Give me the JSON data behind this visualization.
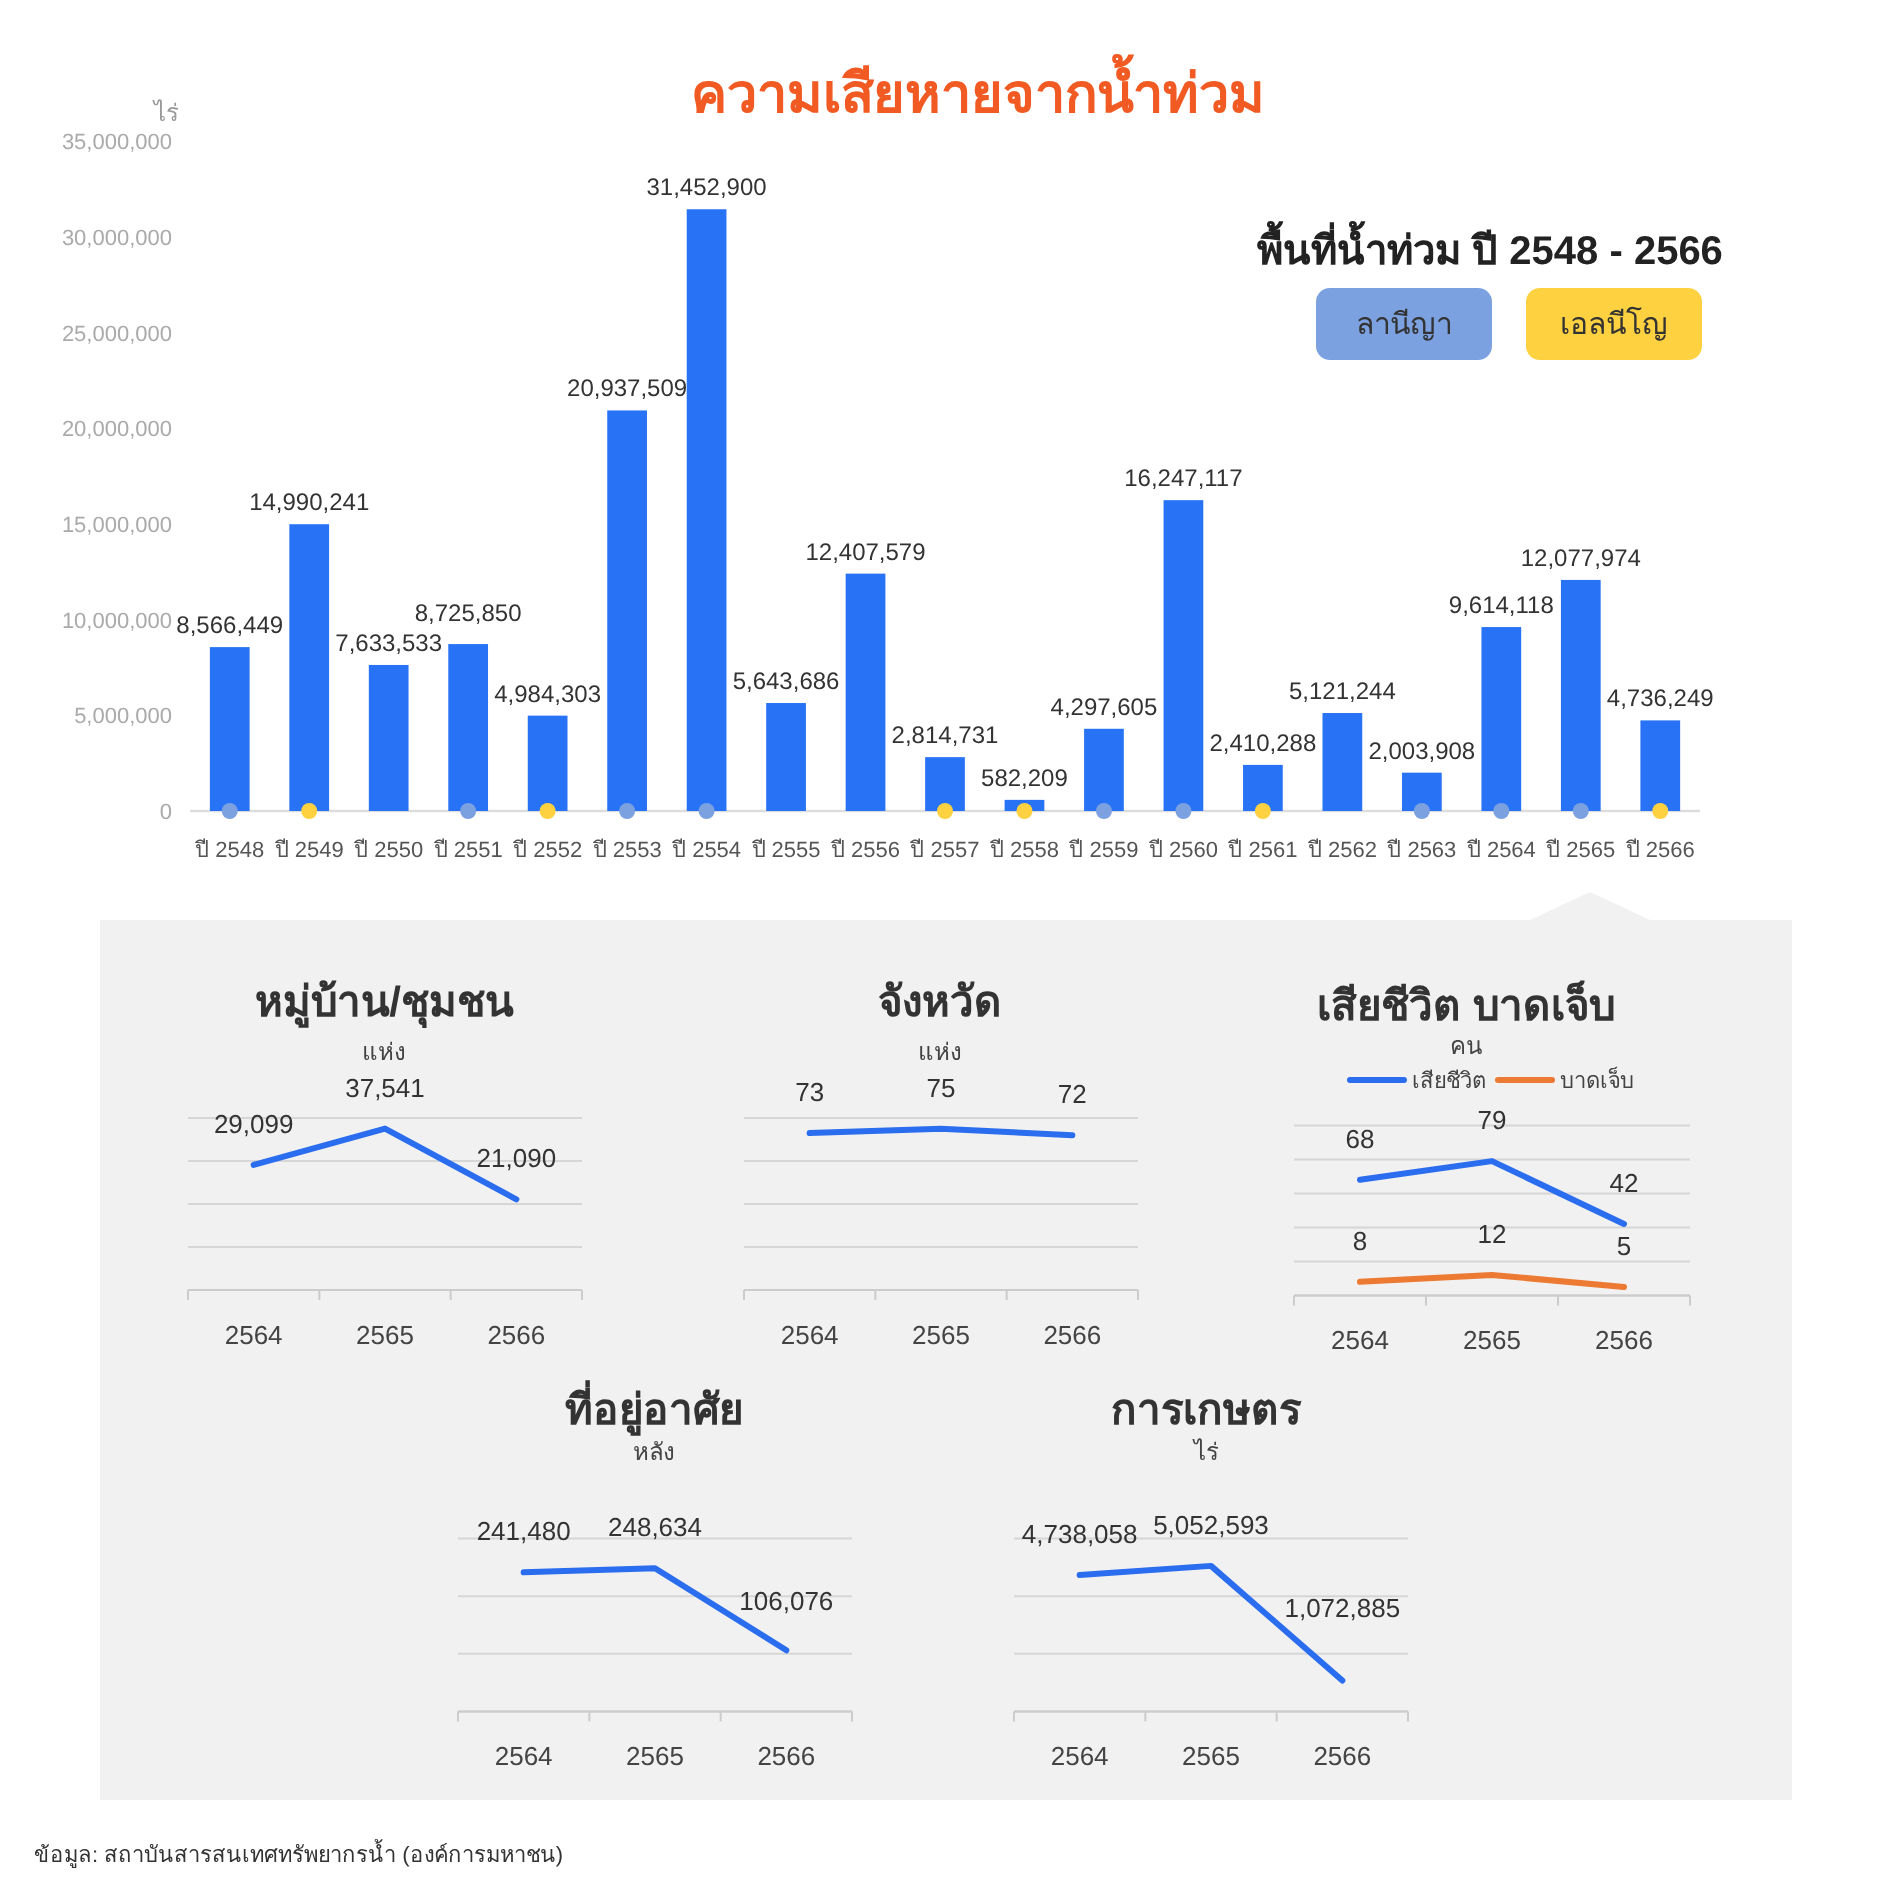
{
  "chart_data": [
    {
      "type": "bar",
      "title": "ความเสียหายจากน้ำท่วม",
      "subtitle": "พื้นที่น้ำท่วม ปี 2548 - 2566",
      "ylabel": "ไร่",
      "categories": [
        "ปี 2548",
        "ปี 2549",
        "ปี 2550",
        "ปี 2551",
        "ปี 2552",
        "ปี 2553",
        "ปี 2554",
        "ปี 2555",
        "ปี 2556",
        "ปี 2557",
        "ปี 2558",
        "ปี 2559",
        "ปี 2560",
        "ปี 2561",
        "ปี 2562",
        "ปี 2563",
        "ปี 2564",
        "ปี 2565",
        "ปี 2566"
      ],
      "series": [
        {
          "type": "bar",
          "color": "#2873f5",
          "values": [
            8566449,
            14990241,
            7633533,
            8725850,
            4984303,
            20937509,
            31452900,
            5643686,
            12407579,
            2814731,
            582209,
            4297605,
            16247117,
            2410288,
            5121244,
            2003908,
            9614118,
            12077974,
            4736249
          ],
          "value_labels": [
            "8,566,449",
            "14,990,241",
            "7,633,533",
            "8,725,850",
            "4,984,303",
            "20,937,509",
            "31,452,900",
            "5,643,686",
            "12,407,579",
            "2,814,731",
            "582,209",
            "4,297,605",
            "16,247,117",
            "2,410,288",
            "5,121,244",
            "2,003,908",
            "9,614,118",
            "12,077,974",
            "4,736,249"
          ]
        },
        {
          "type": "scatter",
          "name": "ลานีญา",
          "color": "#7ca1e1",
          "marker": "circle",
          "x": [
            "ปี 2548",
            "ปี 2551",
            "ปี 2553",
            "ปี 2554",
            "ปี 2559",
            "ปี 2560",
            "ปี 2563",
            "ปี 2564",
            "ปี 2565"
          ],
          "values": [
            0,
            0,
            0,
            0,
            0,
            0,
            0,
            0,
            0
          ]
        },
        {
          "type": "scatter",
          "name": "เอลนีโญ",
          "color": "#fdd13f",
          "marker": "circle",
          "x": [
            "ปี 2549",
            "ปี 2552",
            "ปี 2557",
            "ปี 2558",
            "ปี 2561",
            "ปี 2566"
          ],
          "values": [
            0,
            0,
            0,
            0,
            0,
            0
          ]
        }
      ],
      "ylim": [
        0,
        35000000
      ],
      "yticks": [
        {
          "value": 0,
          "label": "0"
        },
        {
          "value": 5000000,
          "label": "5,000,000"
        },
        {
          "value": 10000000,
          "label": "10,000,000"
        },
        {
          "value": 15000000,
          "label": "15,000,000"
        },
        {
          "value": 20000000,
          "label": "20,000,000"
        },
        {
          "value": 25000000,
          "label": "25,000,000"
        },
        {
          "value": 30000000,
          "label": "30,000,000"
        },
        {
          "value": 35000000,
          "label": "35,000,000"
        }
      ],
      "legend": "top right",
      "annotations": [
        "ข้อมูล: สถาบันสารสนเทศทรัพยากรน้ำ (องค์การมหาชน)"
      ]
    },
    {
      "type": "line",
      "title": "หมู่บ้าน/ชุมชน",
      "subtitle": "แห่ง",
      "categories": [
        "2564",
        "2565",
        "2566"
      ],
      "series": [
        {
          "color": "#2a6def",
          "values": [
            29099,
            37541,
            21090
          ],
          "value_labels": [
            "29,099",
            "37,541",
            "21,090"
          ]
        }
      ],
      "ylim": [
        0,
        40000
      ],
      "yticks": [
        {
          "value": 0,
          "label": null
        },
        {
          "value": 10000,
          "label": null
        },
        {
          "value": 20000,
          "label": null
        },
        {
          "value": 30000,
          "label": null
        },
        {
          "value": 40000,
          "label": null
        }
      ],
      "grid": "y",
      "tick_labels": "x"
    },
    {
      "type": "line",
      "title": "จังหวัด",
      "subtitle": "แห่ง",
      "categories": [
        "2564",
        "2565",
        "2566"
      ],
      "series": [
        {
          "color": "#2a6def",
          "values": [
            73,
            75,
            72
          ],
          "value_labels": [
            "73",
            "75",
            "72"
          ]
        }
      ],
      "ylim": [
        0,
        80
      ],
      "yticks": [
        {
          "value": 0,
          "label": null
        },
        {
          "value": 20,
          "label": null
        },
        {
          "value": 40,
          "label": null
        },
        {
          "value": 60,
          "label": null
        },
        {
          "value": 80,
          "label": null
        }
      ],
      "grid": "y",
      "tick_labels": "x"
    },
    {
      "type": "line",
      "title": "เสียชีวิต บาดเจ็บ",
      "subtitle": "คน",
      "categories": [
        "2564",
        "2565",
        "2566"
      ],
      "series": [
        {
          "name": "เสียชีวิต",
          "color": "#2a6def",
          "values": [
            68,
            79,
            42
          ],
          "value_labels": [
            "68",
            "79",
            "42"
          ]
        },
        {
          "name": "บาดเจ็บ",
          "color": "#ec7a32",
          "values": [
            8,
            12,
            5
          ],
          "value_labels": [
            "8",
            "12",
            "5"
          ]
        }
      ],
      "ylim": [
        0,
        100
      ],
      "yticks": [
        {
          "value": 0,
          "label": null
        },
        {
          "value": 20,
          "label": null
        },
        {
          "value": 40,
          "label": null
        },
        {
          "value": 60,
          "label": null
        },
        {
          "value": 80,
          "label": null
        },
        {
          "value": 100,
          "label": null
        }
      ],
      "grid": "y",
      "tick_labels": "x",
      "legend": "top"
    },
    {
      "type": "line",
      "title": "ที่อยู่อาศัย",
      "subtitle": "หลัง",
      "categories": [
        "2564",
        "2565",
        "2566"
      ],
      "series": [
        {
          "color": "#2a6def",
          "values": [
            241480,
            248634,
            106076
          ],
          "value_labels": [
            "241,480",
            "248,634",
            "106,076"
          ]
        }
      ],
      "ylim": [
        0,
        300000
      ],
      "yticks": [
        {
          "value": 0,
          "label": null
        },
        {
          "value": 100000,
          "label": null
        },
        {
          "value": 200000,
          "label": null
        },
        {
          "value": 300000,
          "label": null
        }
      ],
      "grid": "y",
      "tick_labels": "x"
    },
    {
      "type": "line",
      "title": "การเกษตร",
      "subtitle": "ไร่",
      "categories": [
        "2564",
        "2565",
        "2566"
      ],
      "series": [
        {
          "color": "#2a6def",
          "values": [
            4738058,
            5052593,
            1072885
          ],
          "value_labels": [
            "4,738,058",
            "5,052,593",
            "1,072,885"
          ]
        }
      ],
      "ylim": [
        0,
        6000000
      ],
      "yticks": [
        {
          "value": 0,
          "label": null
        },
        {
          "value": 2000000,
          "label": null
        },
        {
          "value": 4000000,
          "label": null
        },
        {
          "value": 6000000,
          "label": null
        }
      ],
      "grid": "y",
      "tick_labels": "x"
    }
  ]
}
